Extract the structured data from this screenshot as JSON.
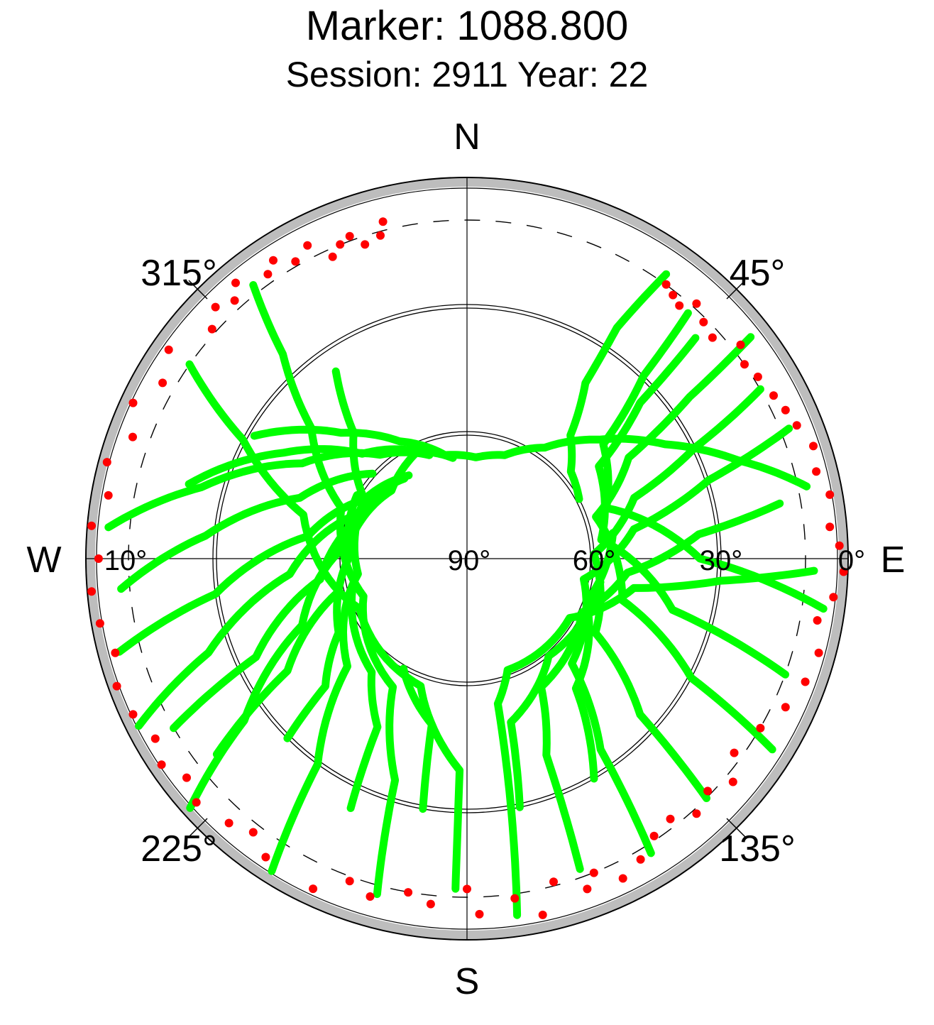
{
  "title": "Marker: 1088.800",
  "subtitle": "Session: 2911 Year: 22",
  "colors": {
    "tracked": "#00ff00",
    "low_elevation": "#ff0000",
    "mask": "#bdbdbd",
    "grid": "#000000"
  },
  "chart_data": {
    "type": "scatter",
    "projection": "polar skyplot (azimuth clockwise from north, elevation 90° at center)",
    "compass": {
      "north": "N",
      "east": "E",
      "south": "S",
      "west": "W"
    },
    "azimuth_labels": [
      "45°",
      "135°",
      "225°",
      "315°"
    ],
    "elevation_labels": [
      "0°",
      "30°",
      "60°",
      "90°"
    ],
    "cutoff_label": "10°",
    "elevation_cutoff": 10,
    "elevation_rings": [
      0,
      30,
      60
    ],
    "series": [
      {
        "color": "green",
        "note": "satellite tracks above cutoff",
        "tracks": [
          {
            "points": [
              [
                62,
                60
              ],
              [
                50,
                58
              ],
              [
                40,
                52
              ],
              [
                34,
                40
              ],
              [
                33,
                25
              ],
              [
                35,
                8
              ]
            ]
          },
          {
            "points": [
              [
                300,
                32
              ],
              [
                315,
                48
              ],
              [
                330,
                58
              ],
              [
                348,
                65
              ],
              [
                5,
                66
              ],
              [
                20,
                64
              ],
              [
                35,
                58
              ],
              [
                48,
                48
              ],
              [
                60,
                36
              ],
              [
                70,
                22
              ],
              [
                78,
                8
              ]
            ]
          },
          {
            "points": [
              [
                285,
                22
              ],
              [
                300,
                40
              ],
              [
                315,
                55
              ],
              [
                335,
                62
              ],
              [
                352,
                66
              ]
            ]
          },
          {
            "points": [
              [
                275,
                5
              ],
              [
                285,
                25
              ],
              [
                300,
                45
              ],
              [
                320,
                58
              ],
              [
                340,
                64
              ]
            ]
          },
          {
            "points": [
              [
                265,
                8
              ],
              [
                275,
                28
              ],
              [
                290,
                48
              ],
              [
                312,
                60
              ]
            ]
          },
          {
            "points": [
              [
                255,
                5
              ],
              [
                262,
                30
              ],
              [
                278,
                52
              ],
              [
                300,
                62
              ],
              [
                325,
                66
              ]
            ]
          },
          {
            "points": [
              [
                243,
                3
              ],
              [
                250,
                25
              ],
              [
                265,
                48
              ],
              [
                292,
                62
              ],
              [
                322,
                66
              ]
            ]
          },
          {
            "points": [
              [
                228,
                2
              ],
              [
                234,
                25
              ],
              [
                248,
                48
              ],
              [
                278,
                62
              ],
              [
                312,
                66
              ],
              [
                336,
                62
              ]
            ]
          },
          {
            "points": [
              [
                212,
                3
              ],
              [
                216,
                30
              ],
              [
                228,
                52
              ],
              [
                262,
                64
              ],
              [
                300,
                62
              ],
              [
                318,
                50
              ],
              [
                325,
                36
              ]
            ]
          },
          {
            "points": [
              [
                195,
                8
              ],
              [
                198,
                35
              ],
              [
                210,
                55
              ],
              [
                250,
                64
              ],
              [
                292,
                58
              ],
              [
                310,
                42
              ],
              [
                318,
                25
              ],
              [
                322,
                8
              ]
            ]
          },
          {
            "points": [
              [
                182,
                12
              ],
              [
                182,
                40
              ],
              [
                200,
                58
              ],
              [
                245,
                62
              ],
              [
                285,
                50
              ],
              [
                298,
                30
              ],
              [
                305,
                10
              ]
            ]
          },
          {
            "points": [
              [
                172,
                5
              ],
              [
                170,
                30
              ],
              [
                168,
                55
              ],
              [
                160,
                62
              ],
              [
                120,
                62
              ],
              [
                100,
                50
              ],
              [
                95,
                30
              ],
              [
                92,
                8
              ]
            ]
          },
          {
            "points": [
              [
                160,
                12
              ],
              [
                158,
                40
              ],
              [
                150,
                55
              ],
              [
                115,
                60
              ],
              [
                95,
                52
              ],
              [
                84,
                35
              ],
              [
                80,
                15
              ]
            ]
          },
          {
            "points": [
              [
                148,
                8
              ],
              [
                145,
                35
              ],
              [
                135,
                55
              ],
              [
                100,
                62
              ],
              [
                80,
                50
              ],
              [
                72,
                30
              ],
              [
                68,
                8
              ]
            ]
          },
          {
            "points": [
              [
                135,
                10
              ],
              [
                132,
                35
              ],
              [
                120,
                55
              ],
              [
                88,
                60
              ],
              [
                70,
                48
              ],
              [
                64,
                30
              ],
              [
                60,
                10
              ]
            ]
          },
          {
            "points": [
              [
                122,
                5
              ],
              [
                118,
                30
              ],
              [
                105,
                52
              ],
              [
                72,
                58
              ],
              [
                58,
                45
              ],
              [
                54,
                25
              ],
              [
                52,
                5
              ]
            ]
          },
          {
            "points": [
              [
                110,
                10
              ],
              [
                104,
                40
              ],
              [
                82,
                58
              ],
              [
                55,
                52
              ],
              [
                48,
                35
              ],
              [
                46,
                15
              ]
            ]
          },
          {
            "points": [
              [
                98,
                5
              ],
              [
                90,
                35
              ],
              [
                70,
                55
              ],
              [
                50,
                48
              ],
              [
                44,
                30
              ],
              [
                42,
                12
              ]
            ]
          },
          {
            "points": [
              [
                225,
                30
              ],
              [
                228,
                45
              ],
              [
                240,
                55
              ],
              [
                270,
                62
              ],
              [
                300,
                60
              ]
            ]
          },
          {
            "points": [
              [
                205,
                25
              ],
              [
                208,
                45
              ],
              [
                220,
                55
              ],
              [
                255,
                62
              ]
            ]
          },
          {
            "points": [
              [
                190,
                30
              ],
              [
                192,
                50
              ],
              [
                210,
                60
              ]
            ]
          },
          {
            "points": [
              [
                168,
                30
              ],
              [
                165,
                50
              ],
              [
                140,
                60
              ],
              [
                100,
                58
              ]
            ]
          },
          {
            "points": [
              [
                150,
                30
              ],
              [
                140,
                50
              ],
              [
                110,
                60
              ],
              [
                80,
                55
              ]
            ]
          },
          {
            "points": [
              [
                240,
                10
              ],
              [
                245,
                35
              ],
              [
                262,
                55
              ],
              [
                295,
                64
              ]
            ]
          },
          {
            "points": [
              [
                232,
                15
              ],
              [
                238,
                40
              ],
              [
                255,
                58
              ]
            ]
          }
        ]
      },
      {
        "color": "red",
        "note": "observations below cutoff elevation",
        "points": [
          [
            325,
            8
          ],
          [
            327,
            6
          ],
          [
            330,
            9
          ],
          [
            333,
            7
          ],
          [
            338,
            10
          ],
          [
            342,
            12
          ],
          [
            345,
            11
          ],
          [
            346,
            8
          ],
          [
            340,
            9
          ],
          [
            336,
            12
          ],
          [
            320,
            5
          ],
          [
            318,
            8
          ],
          [
            315,
            6
          ],
          [
            312,
            9
          ],
          [
            305,
            4
          ],
          [
            300,
            7
          ],
          [
            295,
            3
          ],
          [
            290,
            6
          ],
          [
            285,
            2
          ],
          [
            280,
            4
          ],
          [
            275,
            1
          ],
          [
            270,
            3
          ],
          [
            265,
            1
          ],
          [
            260,
            2
          ],
          [
            255,
            4
          ],
          [
            250,
            2
          ],
          [
            245,
            3
          ],
          [
            240,
            5
          ],
          [
            236,
            3
          ],
          [
            232,
            6
          ],
          [
            228,
            4
          ],
          [
            222,
            6
          ],
          [
            218,
            8
          ],
          [
            214,
            5
          ],
          [
            205,
            4
          ],
          [
            200,
            9
          ],
          [
            196,
            7
          ],
          [
            190,
            10
          ],
          [
            186,
            8
          ],
          [
            180,
            12
          ],
          [
            178,
            6
          ],
          [
            172,
            9
          ],
          [
            168,
            4
          ],
          [
            165,
            11
          ],
          [
            160,
            7
          ],
          [
            158,
            10
          ],
          [
            154,
            6
          ],
          [
            150,
            8
          ],
          [
            146,
            11
          ],
          [
            142,
            12
          ],
          [
            138,
            9
          ],
          [
            134,
            11
          ],
          [
            130,
            8
          ],
          [
            126,
            12
          ],
          [
            120,
            10
          ],
          [
            115,
            7
          ],
          [
            110,
            5
          ],
          [
            105,
            4
          ],
          [
            100,
            6
          ],
          [
            96,
            3
          ],
          [
            92,
            1
          ],
          [
            88,
            2
          ],
          [
            85,
            4
          ],
          [
            80,
            3
          ],
          [
            76,
            5
          ],
          [
            72,
            4
          ],
          [
            68,
            6
          ],
          [
            65,
            7
          ],
          [
            62,
            8
          ],
          [
            58,
            9
          ],
          [
            55,
            10
          ],
          [
            52,
            8
          ],
          [
            48,
            12
          ],
          [
            45,
            11
          ],
          [
            42,
            9
          ],
          [
            40,
            12
          ],
          [
            38,
            11
          ],
          [
            36,
            10
          ]
        ]
      }
    ]
  }
}
